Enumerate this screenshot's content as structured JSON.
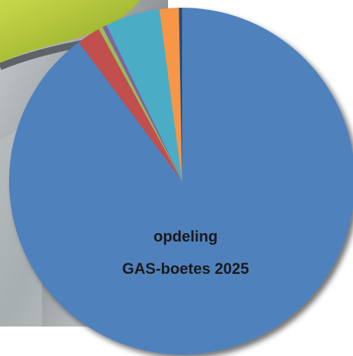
{
  "chart_data": {
    "type": "pie",
    "title": "opdeling",
    "subtitle": "GAS-boetes 2025",
    "values": [
      89.8,
      2.2,
      0.4,
      0.4,
      5.1,
      1.8,
      0.3
    ],
    "colors": [
      "#4f81bd",
      "#c0504d",
      "#9bbb59",
      "#8064a2",
      "#4bacc6",
      "#f79646",
      "#2c4d75"
    ]
  }
}
